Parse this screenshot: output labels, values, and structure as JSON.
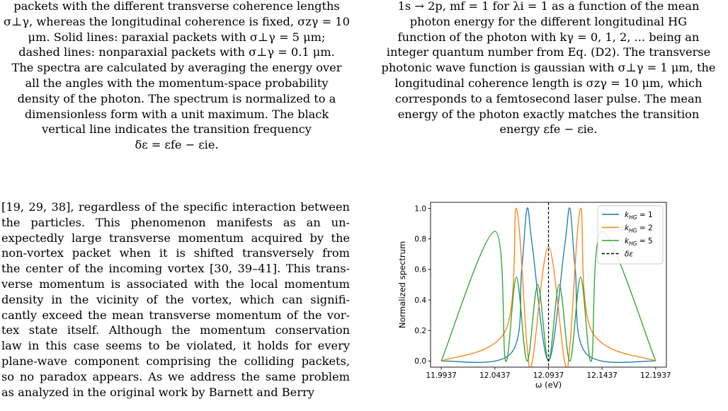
{
  "left_caption_lines": [
    "packets with the different transverse coherence lengths",
    "σ⊥γ, whereas the longitudinal coherence is fixed, σzγ = 10",
    "μm. Solid lines: paraxial packets with σ⊥γ = 5 μm;",
    "dashed lines: nonparaxial packets with σ⊥γ = 0.1 μm.",
    "The spectra are calculated by averaging the energy over",
    "all the angles with the momentum-space probability",
    "density of the photon. The spectrum is normalized to a",
    "dimensionless form with a unit maximum. The black",
    "vertical line indicates the transition frequency",
    "δε = εfe − εie."
  ],
  "right_caption_lines": [
    "1s → 2p, mf = 1 for λi = 1 as a function of the mean",
    "photon energy for the different longitudinal HG",
    "function of the photon with kγ = 0, 1, 2, ... being an",
    "integer quantum number from Eq. (D2). The transverse",
    "photonic wave function is gaussian with σ⊥γ = 1 μm, the",
    "longitudinal coherence length is σzγ = 10 μm, which",
    "corresponds to a femtosecond laser pulse. The mean",
    "energy of the photon exactly matches the transition",
    "energy εfe − εie."
  ],
  "body_lines": [
    "[19, 29, 38], regardless of the specific interaction between",
    "the particles. This phenomenon manifests as an un-",
    "expectedly large transverse momentum acquired by the",
    "non-vortex packet when it is shifted transversely from",
    "the center of the incoming vortex [30, 39–41]. This trans-",
    "verse momentum is associated with the local momentum",
    "density in the vicinity of the vortex, which can signifi-",
    "cantly exceed the mean transverse momentum of the vor-",
    "tex state itself. Although the momentum conservation",
    "law in this case seems to be violated, it holds for every",
    "plane-wave component comprising the colliding packets,",
    "so no paradox appears. As we address the same problem",
    "as analyzed in the original work by Barnett and Berry"
  ],
  "chart_data": {
    "type": "line",
    "xlabel": "ω (eV)",
    "ylabel": "Normalized spectrum",
    "xlim": [
      11.9837,
      12.2037
    ],
    "ylim": [
      -0.04,
      1.04
    ],
    "xticks": [
      "11.9937",
      "12.0437",
      "12.0937",
      "12.1437",
      "12.1937"
    ],
    "yticks": [
      "0.0",
      "0.2",
      "0.4",
      "0.6",
      "0.8",
      "1.0"
    ],
    "legend_position": "top-right",
    "vline": {
      "x": 12.0937,
      "label": "δε",
      "color": "#000000",
      "style": "dashed"
    },
    "series": [
      {
        "name": "k_HG = 1",
        "k": 1,
        "color": "#1f77b4",
        "points": [
          [
            11.9937,
            0.0
          ],
          [
            12.0587,
            0.05
          ],
          [
            12.0687,
            0.6
          ],
          [
            12.0737,
            1.0
          ],
          [
            12.0787,
            0.75
          ],
          [
            12.0937,
            0.0
          ],
          [
            12.1087,
            0.75
          ],
          [
            12.1137,
            1.0
          ],
          [
            12.1187,
            0.6
          ],
          [
            12.1287,
            0.05
          ],
          [
            12.1937,
            0.0
          ]
        ]
      },
      {
        "name": "k_HG = 2",
        "k": 2,
        "color": "#ff7f0e",
        "points": [
          [
            11.9937,
            0.0
          ],
          [
            12.0537,
            0.2
          ],
          [
            12.0637,
            1.0
          ],
          [
            12.0737,
            0.1
          ],
          [
            12.0787,
            0.0
          ],
          [
            12.0937,
            0.75
          ],
          [
            12.1087,
            0.0
          ],
          [
            12.1137,
            0.1
          ],
          [
            12.1237,
            1.0
          ],
          [
            12.1337,
            0.2
          ],
          [
            12.1937,
            0.0
          ]
        ]
      },
      {
        "name": "k_HG = 5",
        "k": 5,
        "color": "#2ca02c",
        "points": [
          [
            11.9937,
            0.0
          ],
          [
            12.0437,
            0.85
          ],
          [
            12.0537,
            0.0
          ],
          [
            12.0637,
            0.55
          ],
          [
            12.0737,
            0.0
          ],
          [
            12.0837,
            0.5
          ],
          [
            12.0937,
            0.0
          ],
          [
            12.1037,
            0.5
          ],
          [
            12.1137,
            0.0
          ],
          [
            12.1237,
            0.55
          ],
          [
            12.1337,
            0.0
          ],
          [
            12.1437,
            0.85
          ],
          [
            12.1937,
            0.0
          ]
        ]
      }
    ],
    "legend_entries": [
      {
        "base": "k",
        "sub": "HG",
        "rest": " = 1",
        "color": "#1f77b4",
        "style": "solid"
      },
      {
        "base": "k",
        "sub": "HG",
        "rest": " = 2",
        "color": "#ff7f0e",
        "style": "solid"
      },
      {
        "base": "k",
        "sub": "HG",
        "rest": " = 5",
        "color": "#2ca02c",
        "style": "solid"
      },
      {
        "base": "δε",
        "sub": "",
        "rest": "",
        "color": "#000000",
        "style": "dashed"
      }
    ]
  }
}
